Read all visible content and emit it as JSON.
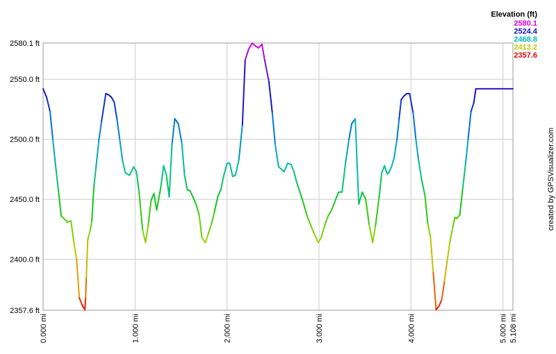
{
  "chart_data": {
    "type": "line",
    "title": "",
    "xlabel": "",
    "ylabel": "",
    "xlim": [
      0,
      5.108
    ],
    "ylim": [
      2357.6,
      2580.1
    ],
    "grid": true,
    "x_ticks": [
      {
        "value": 0,
        "label": "0.000 mi"
      },
      {
        "value": 1,
        "label": "1.000 mi"
      },
      {
        "value": 2,
        "label": "2.000 mi"
      },
      {
        "value": 3,
        "label": "3.000 mi"
      },
      {
        "value": 4,
        "label": "4.000 mi"
      },
      {
        "value": 5,
        "label": "5.000 mi"
      },
      {
        "value": 5.108,
        "label": "5.108 mi"
      }
    ],
    "y_ticks": [
      {
        "value": 2357.6,
        "label": "2357.6 ft"
      },
      {
        "value": 2400,
        "label": "2400.0 ft"
      },
      {
        "value": 2450,
        "label": "2450.0 ft"
      },
      {
        "value": 2500,
        "label": "2500.0 ft"
      },
      {
        "value": 2550,
        "label": "2550.0 ft"
      },
      {
        "value": 2580.1,
        "label": "2580.1 ft"
      }
    ],
    "legend": {
      "title": "Elevation (ft)",
      "position": "top-right",
      "entries": [
        {
          "label": "2580.1",
          "color": "#dd00dd"
        },
        {
          "label": "2524.4",
          "color": "#1010cc"
        },
        {
          "label": "2468.8",
          "color": "#00bbbb"
        },
        {
          "label": "2413.2",
          "color": "#bbcc00"
        },
        {
          "label": "2357.6",
          "color": "#ee0000"
        }
      ]
    },
    "series": [
      {
        "x": [
          0.0,
          0.038,
          0.076,
          0.106,
          0.136,
          0.167,
          0.197,
          0.227,
          0.265,
          0.303,
          0.333,
          0.364,
          0.394,
          0.424,
          0.455,
          0.462,
          0.47,
          0.485,
          0.515,
          0.53,
          0.553,
          0.576,
          0.606,
          0.636,
          0.682,
          0.712,
          0.742,
          0.773,
          0.803,
          0.833,
          0.864,
          0.894,
          0.939,
          0.985,
          1.015,
          1.045,
          1.083,
          1.114,
          1.144,
          1.174,
          1.205,
          1.235,
          1.28,
          1.311,
          1.341,
          1.371,
          1.402,
          1.432,
          1.47,
          1.508,
          1.538,
          1.568,
          1.598,
          1.629,
          1.667,
          1.697,
          1.727,
          1.765,
          1.795,
          1.833,
          1.864,
          1.902,
          1.932,
          1.962,
          2.0,
          2.03,
          2.061,
          2.091,
          2.129,
          2.167,
          2.197,
          2.235,
          2.273,
          2.303,
          2.341,
          2.379,
          2.409,
          2.455,
          2.492,
          2.523,
          2.561,
          2.591,
          2.621,
          2.659,
          2.697,
          2.727,
          2.758,
          2.788,
          2.826,
          2.871,
          2.917,
          2.955,
          2.992,
          3.023,
          3.061,
          3.098,
          3.136,
          3.167,
          3.212,
          3.25,
          3.288,
          3.326,
          3.356,
          3.394,
          3.432,
          3.47,
          3.508,
          3.545,
          3.583,
          3.614,
          3.652,
          3.682,
          3.712,
          3.742,
          3.758,
          3.788,
          3.818,
          3.848,
          3.871,
          3.894,
          3.924,
          3.955,
          3.985,
          4.023,
          4.053,
          4.083,
          4.114,
          4.152,
          4.182,
          4.212,
          4.242,
          4.273,
          4.303,
          4.333,
          4.364,
          4.394,
          4.424,
          4.455,
          4.477,
          4.5,
          4.53,
          4.561,
          4.591,
          4.621,
          4.652,
          4.682,
          4.705,
          4.735,
          4.765,
          4.795,
          4.826,
          4.856,
          4.894,
          4.924,
          4.955,
          4.985,
          5.015,
          5.045,
          5.076,
          5.108
        ],
        "y": [
          2542,
          2535,
          2523,
          2500,
          2478,
          2457,
          2436,
          2434,
          2431,
          2432,
          2415,
          2400,
          2368,
          2362,
          2358,
          2368,
          2385,
          2416,
          2425,
          2432,
          2461,
          2477,
          2499,
          2515,
          2538,
          2537,
          2535,
          2531,
          2517,
          2500,
          2482,
          2472,
          2470,
          2477,
          2473,
          2455,
          2424,
          2414,
          2429,
          2449,
          2455,
          2441,
          2460,
          2478,
          2470,
          2452,
          2496,
          2517,
          2513,
          2497,
          2470,
          2458,
          2457,
          2452,
          2445,
          2437,
          2418,
          2414,
          2421,
          2430,
          2440,
          2453,
          2458,
          2469,
          2480,
          2480,
          2469,
          2470,
          2483,
          2512,
          2566,
          2575,
          2580,
          2578,
          2576,
          2579,
          2566,
          2548,
          2522,
          2496,
          2477,
          2475,
          2473,
          2480,
          2479,
          2473,
          2464,
          2457,
          2448,
          2436,
          2427,
          2420,
          2414,
          2418,
          2428,
          2436,
          2441,
          2447,
          2456,
          2456,
          2480,
          2500,
          2513,
          2517,
          2446,
          2456,
          2450,
          2429,
          2414,
          2428,
          2451,
          2472,
          2478,
          2471,
          2472,
          2477,
          2485,
          2500,
          2517,
          2533,
          2536,
          2538,
          2538,
          2522,
          2500,
          2482,
          2467,
          2453,
          2430,
          2418,
          2389,
          2358,
          2361,
          2366,
          2382,
          2399,
          2415,
          2427,
          2435,
          2434,
          2437,
          2458,
          2478,
          2500,
          2523,
          2530,
          2542,
          2542,
          2542,
          2542,
          2542,
          2542,
          2542,
          2542,
          2542,
          2542,
          2542,
          2542,
          2542,
          2542
        ]
      }
    ]
  },
  "credit": "created by GPSVisualizer.com"
}
